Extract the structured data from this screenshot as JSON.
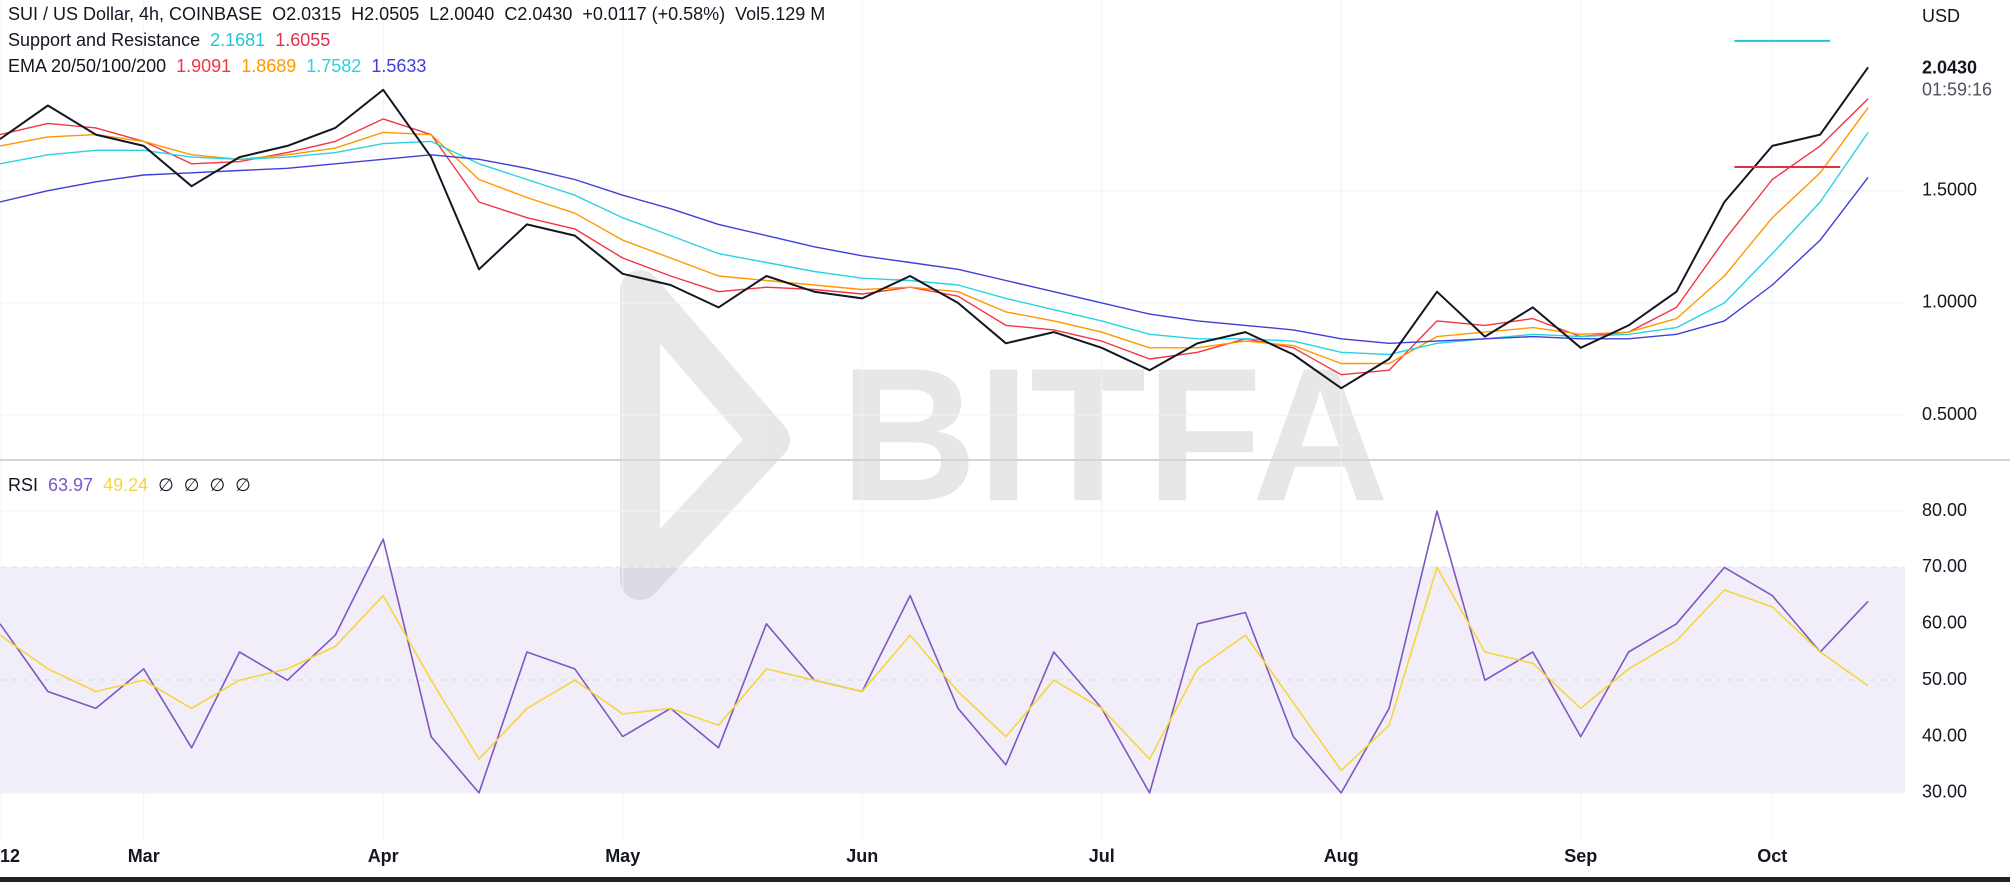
{
  "chart_data": [
    {
      "type": "line",
      "title": "SUI / US Dollar, 4h, COINBASE",
      "ohlc": [
        {
          "key": "O",
          "value": "2.0315"
        },
        {
          "key": "H",
          "value": "2.0505"
        },
        {
          "key": "L",
          "value": "2.0040"
        },
        {
          "key": "C",
          "value": "2.0430"
        }
      ],
      "change": "+0.0117 (+0.58%)",
      "volume": {
        "key": "Vol",
        "value": "5.129 M"
      },
      "currency": "USD",
      "last_price": {
        "value": 2.043,
        "label": "2.0430"
      },
      "countdown": "01:59:16",
      "watermark": "BITFA",
      "categories": [
        "12",
        null,
        null,
        "Mar",
        null,
        null,
        null,
        null,
        "Apr",
        null,
        null,
        null,
        null,
        "May",
        null,
        null,
        null,
        null,
        "Jun",
        null,
        null,
        null,
        null,
        "Jul",
        null,
        null,
        null,
        null,
        "Aug",
        null,
        null,
        null,
        null,
        "Sep",
        null,
        null,
        null,
        "Oct",
        null,
        null
      ],
      "color": "#131722",
      "values": [
        1.73,
        1.88,
        1.75,
        1.7,
        1.52,
        1.65,
        1.7,
        1.78,
        1.95,
        1.65,
        1.15,
        1.35,
        1.3,
        1.13,
        1.08,
        0.98,
        1.12,
        1.05,
        1.02,
        1.12,
        1.0,
        0.82,
        0.87,
        0.8,
        0.7,
        0.82,
        0.87,
        0.77,
        0.62,
        0.75,
        1.05,
        0.85,
        0.98,
        0.8,
        0.9,
        1.05,
        1.45,
        1.7,
        1.75,
        2.05
      ],
      "support_resistance": {
        "name": "Support and Resistance",
        "resistance": 2.1681,
        "support": 1.6055,
        "resistance_color": "#22c5d6",
        "support_color": "#e0314b"
      },
      "ema": {
        "name": "EMA 20/50/100/200",
        "series": [
          {
            "color": "#f23645",
            "last": 1.9091,
            "values": [
              1.75,
              1.8,
              1.78,
              1.72,
              1.62,
              1.63,
              1.67,
              1.72,
              1.82,
              1.75,
              1.45,
              1.38,
              1.33,
              1.2,
              1.12,
              1.05,
              1.07,
              1.06,
              1.04,
              1.07,
              1.03,
              0.9,
              0.88,
              0.83,
              0.75,
              0.78,
              0.84,
              0.8,
              0.68,
              0.7,
              0.92,
              0.9,
              0.93,
              0.85,
              0.87,
              0.98,
              1.28,
              1.55,
              1.7,
              1.91
            ]
          },
          {
            "color": "#ff9800",
            "last": 1.8689,
            "values": [
              1.7,
              1.74,
              1.75,
              1.72,
              1.66,
              1.64,
              1.66,
              1.69,
              1.76,
              1.75,
              1.55,
              1.47,
              1.4,
              1.28,
              1.2,
              1.12,
              1.1,
              1.08,
              1.06,
              1.07,
              1.05,
              0.96,
              0.92,
              0.87,
              0.8,
              0.8,
              0.83,
              0.81,
              0.73,
              0.73,
              0.85,
              0.87,
              0.89,
              0.86,
              0.87,
              0.93,
              1.12,
              1.38,
              1.58,
              1.87
            ]
          },
          {
            "color": "#2ad3e0",
            "last": 1.7582,
            "values": [
              1.62,
              1.66,
              1.68,
              1.68,
              1.65,
              1.64,
              1.65,
              1.67,
              1.71,
              1.72,
              1.62,
              1.55,
              1.48,
              1.38,
              1.3,
              1.22,
              1.18,
              1.14,
              1.11,
              1.1,
              1.08,
              1.02,
              0.97,
              0.92,
              0.86,
              0.84,
              0.84,
              0.83,
              0.78,
              0.77,
              0.82,
              0.84,
              0.86,
              0.85,
              0.86,
              0.89,
              1.0,
              1.22,
              1.45,
              1.76
            ]
          },
          {
            "color": "#3f3fd8",
            "last": 1.5633,
            "values": [
              1.45,
              1.5,
              1.54,
              1.57,
              1.58,
              1.59,
              1.6,
              1.62,
              1.64,
              1.66,
              1.64,
              1.6,
              1.55,
              1.48,
              1.42,
              1.35,
              1.3,
              1.25,
              1.21,
              1.18,
              1.15,
              1.1,
              1.05,
              1.0,
              0.95,
              0.92,
              0.9,
              0.88,
              0.84,
              0.82,
              0.83,
              0.84,
              0.85,
              0.84,
              0.84,
              0.86,
              0.92,
              1.08,
              1.28,
              1.56
            ]
          }
        ]
      },
      "ylim": [
        0.3,
        2.35
      ],
      "yticks": [
        {
          "value": 0.5,
          "label": "0.5000"
        },
        {
          "value": 1,
          "label": "1.0000"
        },
        {
          "value": 1.5,
          "label": "1.5000"
        }
      ],
      "grid": true
    },
    {
      "type": "line",
      "name": "RSI",
      "series": [
        {
          "color": "#7e57c2",
          "last": 63.97,
          "values": [
            60,
            48,
            45,
            52,
            38,
            55,
            50,
            58,
            75,
            40,
            30,
            55,
            52,
            40,
            45,
            38,
            60,
            50,
            48,
            65,
            45,
            35,
            55,
            45,
            30,
            60,
            62,
            40,
            30,
            45,
            80,
            50,
            55,
            40,
            55,
            60,
            70,
            65,
            55,
            64
          ]
        },
        {
          "color": "#f5d63d",
          "last": 49.24,
          "values": [
            58,
            52,
            48,
            50,
            45,
            50,
            52,
            56,
            65,
            50,
            36,
            45,
            50,
            44,
            45,
            42,
            52,
            50,
            48,
            58,
            48,
            40,
            50,
            45,
            36,
            52,
            58,
            46,
            34,
            42,
            70,
            55,
            53,
            45,
            52,
            57,
            66,
            63,
            55,
            49
          ]
        }
      ],
      "inputs": [
        "∅",
        "∅",
        "∅",
        "∅"
      ],
      "band": {
        "upper": 70,
        "middle": 50,
        "lower": 30,
        "color": "#7e57c2"
      },
      "ylim": [
        21.3,
        88.7
      ],
      "yticks": [
        {
          "value": 30,
          "label": "30.00"
        },
        {
          "value": 40,
          "label": "40.00"
        },
        {
          "value": 50,
          "label": "50.00"
        },
        {
          "value": 60,
          "label": "60.00"
        },
        {
          "value": 70,
          "label": "70.00"
        },
        {
          "value": 80,
          "label": "80.00"
        }
      ],
      "grid": true
    }
  ]
}
